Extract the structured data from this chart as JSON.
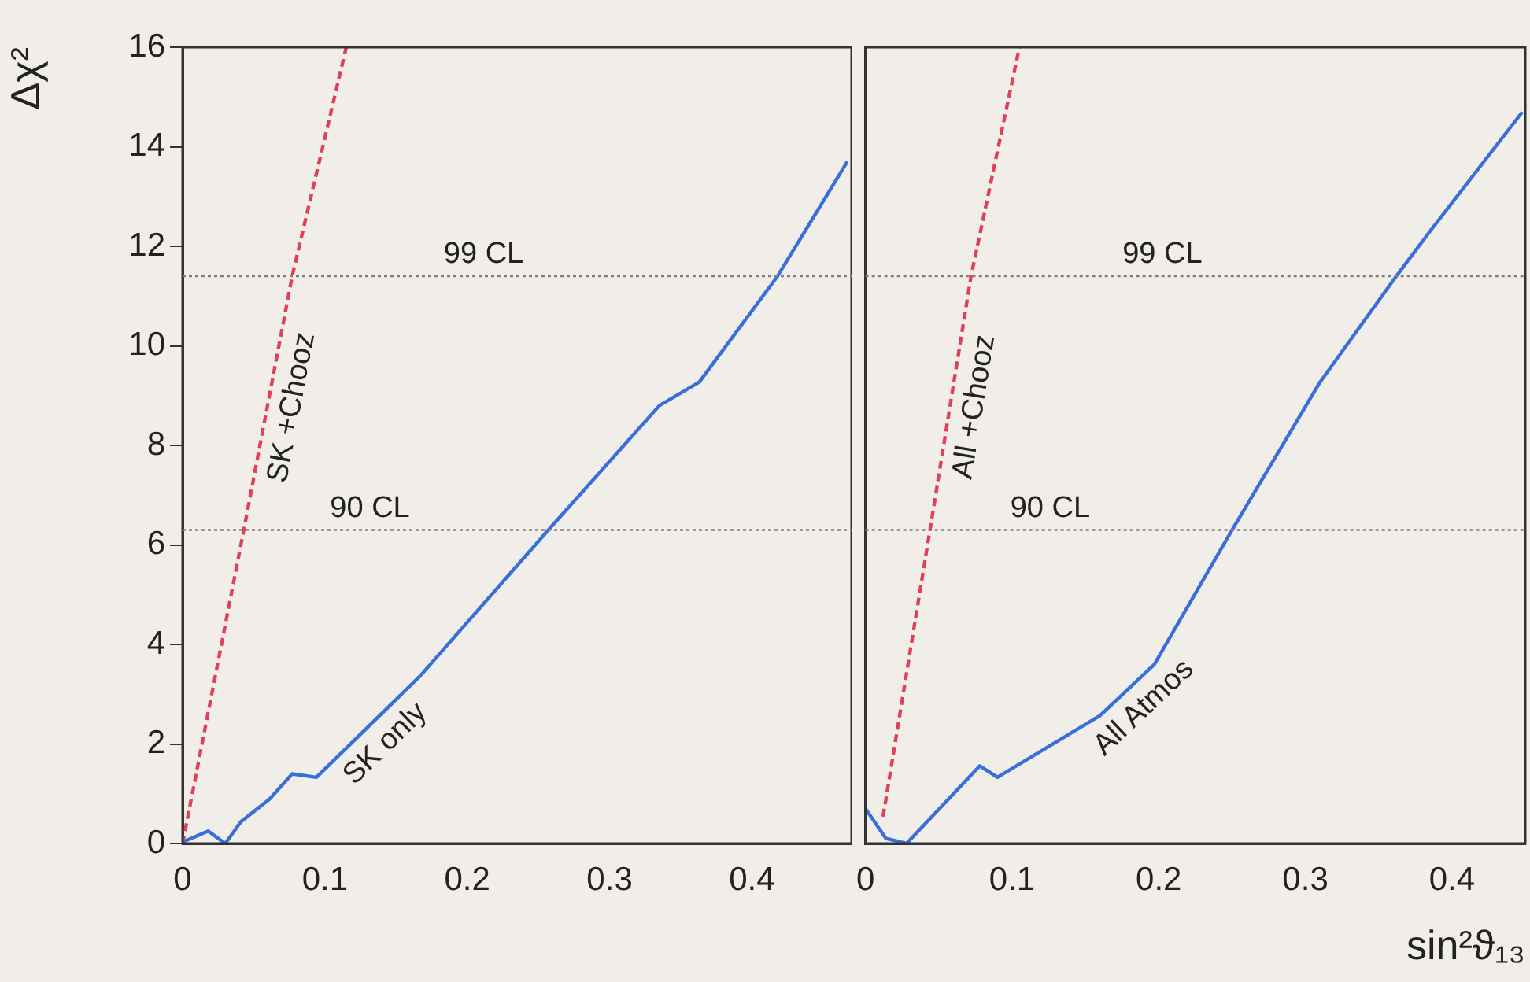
{
  "chart_data": [
    {
      "type": "line",
      "ylabel": "Δχ²",
      "xlim": [
        0,
        0.47
      ],
      "xticks": [
        0,
        0.1,
        0.2,
        0.3,
        0.4
      ],
      "ylim": [
        0,
        16
      ],
      "yticks": [
        0,
        2,
        4,
        6,
        8,
        10,
        12,
        14,
        16
      ],
      "grid": false,
      "legend": false,
      "marker": "none",
      "series": [
        {
          "name": "SK only",
          "color": "#3a6fd8",
          "line_style": "solid",
          "x": [
            0,
            0.018,
            0.03,
            0.041,
            0.061,
            0.077,
            0.094,
            0.167,
            0.257,
            0.335,
            0.363,
            0.418,
            0.467
          ],
          "values": [
            0.03,
            0.25,
            0,
            0.44,
            0.89,
            1.4,
            1.33,
            3.37,
            6.3,
            8.8,
            9.27,
            11.4,
            13.7
          ]
        },
        {
          "name": "SK +Chooz",
          "color": "#e0405a",
          "line_style": "dashed",
          "x": [
            0,
            0.043,
            0.077,
            0.115
          ],
          "values": [
            0,
            6.3,
            11.4,
            16
          ]
        }
      ],
      "ref_lines": [
        {
          "axis": "y",
          "value": 6.3,
          "label": "90 CL",
          "color": "#808080",
          "line_style": "dotted"
        },
        {
          "axis": "y",
          "value": 11.4,
          "label": "99 CL",
          "color": "#808080",
          "line_style": "dotted"
        }
      ]
    },
    {
      "type": "line",
      "xlabel": "sin²ϑ₁₃",
      "xlim": [
        0,
        0.45
      ],
      "xticks": [
        0,
        0.1,
        0.2,
        0.3,
        0.4
      ],
      "ylim": [
        0,
        16
      ],
      "yticks": [
        0,
        2,
        4,
        6,
        8,
        10,
        12,
        14,
        16
      ],
      "tick_labels": "x",
      "grid": false,
      "legend": false,
      "marker": "none",
      "series": [
        {
          "name": "All Atmos",
          "color": "#3a6fd8",
          "line_style": "solid",
          "x": [
            0,
            0.014,
            0.028,
            0.078,
            0.09,
            0.16,
            0.197,
            0.25,
            0.31,
            0.362,
            0.385,
            0.448
          ],
          "values": [
            0.7,
            0.1,
            0,
            1.56,
            1.33,
            2.57,
            3.6,
            6.3,
            9.27,
            11.4,
            12.3,
            14.7
          ]
        },
        {
          "name": "All +Chooz",
          "color": "#e0405a",
          "line_style": "dashed",
          "x": [
            0.012,
            0.044,
            0.072,
            0.105
          ],
          "values": [
            0.54,
            6.3,
            11.4,
            16
          ]
        }
      ],
      "ref_lines": [
        {
          "axis": "y",
          "value": 6.3,
          "label": "90 CL",
          "color": "#808080",
          "line_style": "dotted"
        },
        {
          "axis": "y",
          "value": 11.4,
          "label": "99 CL",
          "color": "#808080",
          "line_style": "dotted"
        }
      ]
    }
  ]
}
